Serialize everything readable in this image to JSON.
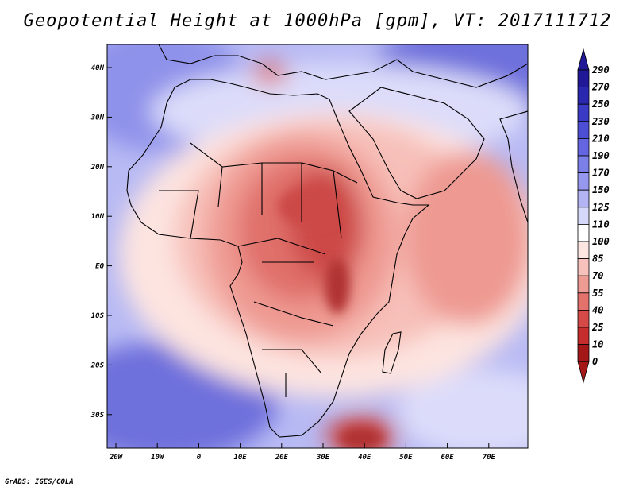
{
  "title": "Geopotential Height at 1000hPa [gpm], VT: 2017111712",
  "credit": "GrADS: IGES/COLA",
  "lat_ticks": [
    "40N",
    "30N",
    "20N",
    "10N",
    "EQ",
    "10S",
    "20S",
    "30S"
  ],
  "lon_ticks": [
    "20W",
    "10W",
    "0",
    "10E",
    "20E",
    "30E",
    "40E",
    "50E",
    "60E",
    "70E"
  ],
  "colorbar": {
    "levels": [
      "290",
      "270",
      "250",
      "230",
      "210",
      "190",
      "170",
      "150",
      "125",
      "110",
      "100",
      "85",
      "70",
      "55",
      "40",
      "25",
      "10",
      "0"
    ],
    "colors": [
      "#201896",
      "#2b28b0",
      "#3a3ac4",
      "#4c4fd4",
      "#6366e0",
      "#7b7fe8",
      "#9598ee",
      "#b2b4f4",
      "#d6d8fa",
      "#ffffff",
      "#fde6e2",
      "#f7c2bb",
      "#ee9b93",
      "#e2726b",
      "#d54a46",
      "#c52e2c",
      "#a51818"
    ]
  },
  "map_palette": {
    "blue_deep": "#6e70dc",
    "blue_mid": "#8f92ea",
    "blue_light": "#b8baf4",
    "blue_pale": "#dcdcfa",
    "white": "#ffffff",
    "red_pale": "#fde4e0",
    "red_light": "#f7c0b9",
    "red_mid": "#ee9a92",
    "red_deep": "#e0706a",
    "red_dark": "#cc4a46",
    "red_core": "#b03230",
    "coast": "#000000"
  }
}
